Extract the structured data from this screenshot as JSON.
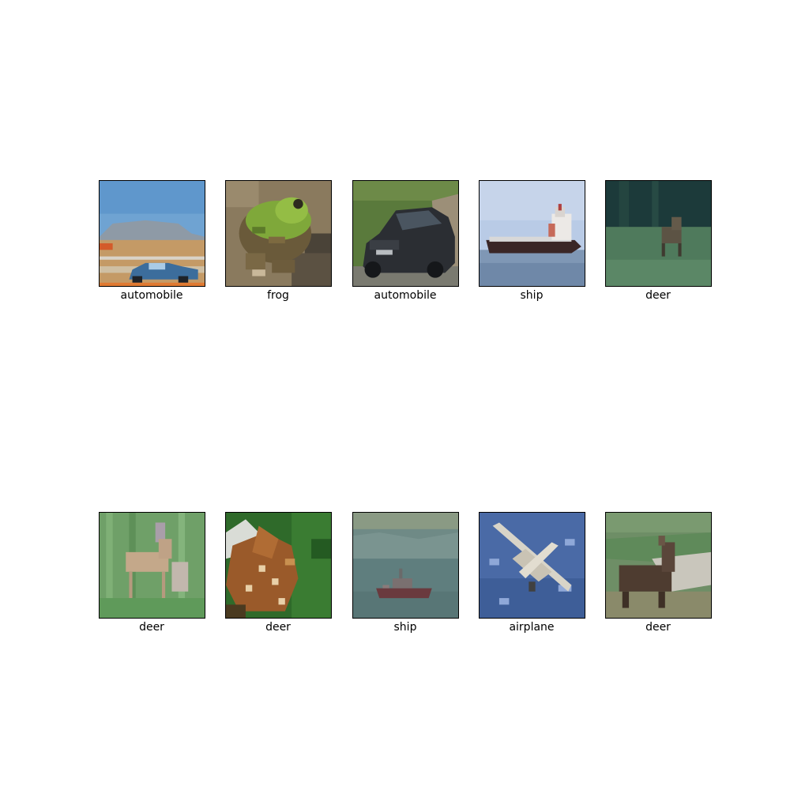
{
  "tiles": [
    {
      "label": "automobile",
      "scene": "car-track"
    },
    {
      "label": "frog",
      "scene": "frog"
    },
    {
      "label": "automobile",
      "scene": "car-dark"
    },
    {
      "label": "ship",
      "scene": "ship-sea"
    },
    {
      "label": "deer",
      "scene": "deer-forest"
    },
    {
      "label": "deer",
      "scene": "deer-grass"
    },
    {
      "label": "deer",
      "scene": "fawn-closeup"
    },
    {
      "label": "ship",
      "scene": "ship-haze"
    },
    {
      "label": "airplane",
      "scene": "airplane-sky"
    },
    {
      "label": "deer",
      "scene": "deer-field"
    }
  ]
}
